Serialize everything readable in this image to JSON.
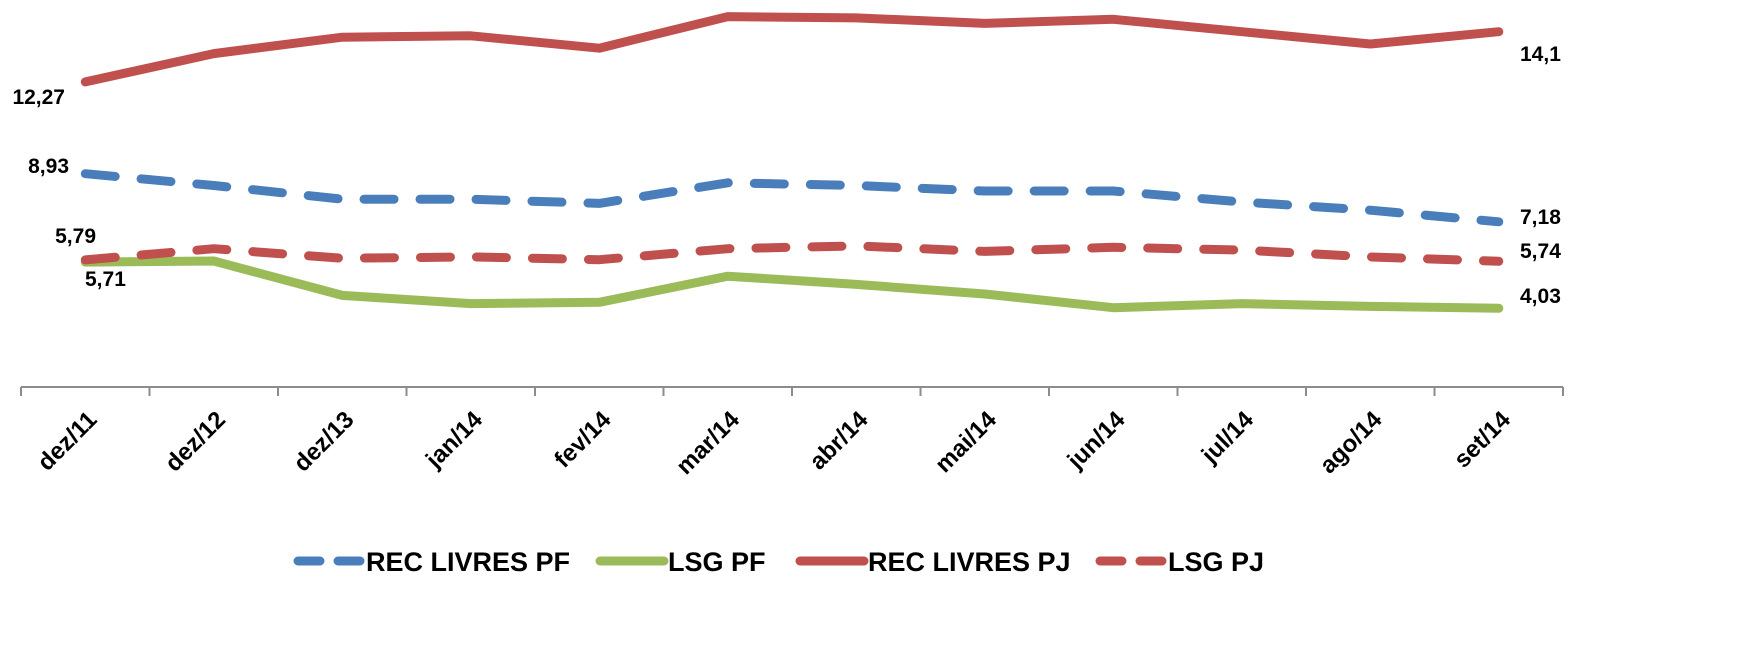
{
  "chart_data": {
    "type": "line",
    "title": "",
    "xlabel": "",
    "ylabel": "",
    "categories": [
      "dez/11",
      "dez/12",
      "dez/13",
      "jan/14",
      "fev/14",
      "mar/14",
      "abr/14",
      "mai/14",
      "jun/14",
      "jul/14",
      "ago/14",
      "set/14"
    ],
    "ylim": [
      0,
      15
    ],
    "grid": false,
    "legend_position": "bottom",
    "series": [
      {
        "name": "REC LIVRES PF",
        "style": "dashed",
        "color": "#4A7EBB",
        "values": [
          8.93,
          8.5,
          8.0,
          8.0,
          7.85,
          8.6,
          8.5,
          8.3,
          8.3,
          7.9,
          7.6,
          7.18
        ],
        "first_label": "8,93",
        "last_label": "7,18"
      },
      {
        "name": "LSG PF",
        "style": "solid",
        "color": "#9BBB59",
        "values": [
          5.71,
          5.75,
          4.5,
          4.2,
          4.25,
          5.2,
          4.9,
          4.55,
          4.05,
          4.2,
          4.1,
          4.03
        ],
        "first_label": "5,71",
        "last_label": "4,03"
      },
      {
        "name": "REC LIVRES PJ",
        "style": "solid",
        "color": "#C0504D",
        "values": [
          12.27,
          13.3,
          13.9,
          13.95,
          13.5,
          14.65,
          14.6,
          14.4,
          14.55,
          14.1,
          13.65,
          14.1
        ],
        "first_label": "12,27",
        "last_label": "14,1"
      },
      {
        "name": "LSG PJ",
        "style": "dashed",
        "color": "#C0504D",
        "values": [
          5.79,
          6.2,
          5.85,
          5.9,
          5.8,
          6.2,
          6.3,
          6.1,
          6.25,
          6.15,
          5.9,
          5.74
        ],
        "first_label": "5,79",
        "last_label": "5,74"
      }
    ]
  }
}
